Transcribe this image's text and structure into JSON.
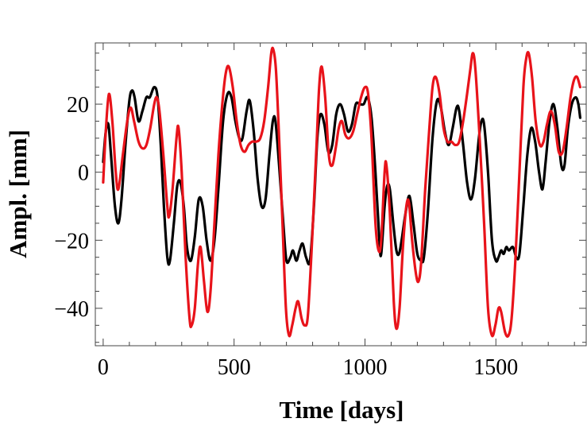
{
  "chart_data": {
    "type": "line",
    "title": "",
    "xlabel": "Time [days]",
    "ylabel": "Ampl. [mm]",
    "xlim": [
      -30,
      1845
    ],
    "ylim": [
      -51,
      38
    ],
    "x_ticks": [
      0,
      500,
      1000,
      1500
    ],
    "x_tick_labels": [
      "0",
      "500",
      "1000",
      "1500"
    ],
    "y_ticks": [
      20,
      0,
      -20,
      -40
    ],
    "y_tick_labels": [
      "20",
      "0",
      "−20",
      "−40"
    ],
    "grid": false,
    "series": [
      {
        "name": "black",
        "color": "#000000",
        "points": [
          [
            0,
            3
          ],
          [
            10,
            12
          ],
          [
            20,
            14
          ],
          [
            30,
            5
          ],
          [
            45,
            -10
          ],
          [
            58,
            -15
          ],
          [
            70,
            -8
          ],
          [
            85,
            8
          ],
          [
            100,
            21
          ],
          [
            110,
            24
          ],
          [
            120,
            22
          ],
          [
            135,
            15
          ],
          [
            150,
            18
          ],
          [
            165,
            22
          ],
          [
            178,
            22
          ],
          [
            195,
            25
          ],
          [
            208,
            22
          ],
          [
            220,
            8
          ],
          [
            232,
            -10
          ],
          [
            245,
            -25
          ],
          [
            255,
            -26
          ],
          [
            270,
            -15
          ],
          [
            283,
            -4
          ],
          [
            295,
            -3
          ],
          [
            308,
            -10
          ],
          [
            320,
            -22
          ],
          [
            335,
            -26
          ],
          [
            350,
            -19
          ],
          [
            365,
            -8
          ],
          [
            380,
            -10
          ],
          [
            395,
            -20
          ],
          [
            410,
            -26
          ],
          [
            425,
            -20
          ],
          [
            440,
            -5
          ],
          [
            458,
            15
          ],
          [
            475,
            23
          ],
          [
            490,
            22
          ],
          [
            505,
            15
          ],
          [
            520,
            10
          ],
          [
            532,
            10
          ],
          [
            548,
            18
          ],
          [
            560,
            21
          ],
          [
            575,
            12
          ],
          [
            590,
            -2
          ],
          [
            605,
            -10
          ],
          [
            620,
            -8
          ],
          [
            635,
            5
          ],
          [
            648,
            15
          ],
          [
            658,
            15
          ],
          [
            672,
            2
          ],
          [
            688,
            -15
          ],
          [
            700,
            -26
          ],
          [
            715,
            -25
          ],
          [
            725,
            -23
          ],
          [
            738,
            -26
          ],
          [
            750,
            -23
          ],
          [
            762,
            -21
          ],
          [
            775,
            -25
          ],
          [
            790,
            -26
          ],
          [
            805,
            -10
          ],
          [
            818,
            10
          ],
          [
            830,
            17
          ],
          [
            845,
            14
          ],
          [
            860,
            6
          ],
          [
            875,
            8
          ],
          [
            890,
            17
          ],
          [
            905,
            20
          ],
          [
            920,
            17
          ],
          [
            935,
            12
          ],
          [
            950,
            14
          ],
          [
            965,
            20
          ],
          [
            980,
            20
          ],
          [
            995,
            20
          ],
          [
            1010,
            22
          ],
          [
            1025,
            16
          ],
          [
            1040,
            0
          ],
          [
            1055,
            -20
          ],
          [
            1062,
            -24
          ],
          [
            1075,
            -10
          ],
          [
            1085,
            -4
          ],
          [
            1095,
            -5
          ],
          [
            1108,
            -15
          ],
          [
            1120,
            -23
          ],
          [
            1130,
            -24
          ],
          [
            1140,
            -20
          ],
          [
            1155,
            -12
          ],
          [
            1170,
            -7
          ],
          [
            1185,
            -15
          ],
          [
            1200,
            -24
          ],
          [
            1215,
            -26
          ],
          [
            1225,
            -25
          ],
          [
            1240,
            -12
          ],
          [
            1258,
            10
          ],
          [
            1275,
            21
          ],
          [
            1290,
            19
          ],
          [
            1305,
            12
          ],
          [
            1320,
            8
          ],
          [
            1335,
            13
          ],
          [
            1350,
            19
          ],
          [
            1360,
            18
          ],
          [
            1375,
            8
          ],
          [
            1390,
            -3
          ],
          [
            1405,
            -8
          ],
          [
            1420,
            -2
          ],
          [
            1435,
            10
          ],
          [
            1445,
            15
          ],
          [
            1455,
            14
          ],
          [
            1470,
            0
          ],
          [
            1485,
            -20
          ],
          [
            1500,
            -26
          ],
          [
            1510,
            -25
          ],
          [
            1520,
            -23
          ],
          [
            1530,
            -24
          ],
          [
            1540,
            -22
          ],
          [
            1550,
            -23
          ],
          [
            1565,
            -22
          ],
          [
            1578,
            -25
          ],
          [
            1590,
            -24
          ],
          [
            1605,
            -10
          ],
          [
            1620,
            5
          ],
          [
            1635,
            13
          ],
          [
            1650,
            9
          ],
          [
            1665,
            0
          ],
          [
            1678,
            -5
          ],
          [
            1690,
            3
          ],
          [
            1705,
            15
          ],
          [
            1720,
            20
          ],
          [
            1735,
            13
          ],
          [
            1750,
            2
          ],
          [
            1762,
            2
          ],
          [
            1775,
            13
          ],
          [
            1790,
            20
          ],
          [
            1805,
            22
          ],
          [
            1815,
            20
          ],
          [
            1822,
            16
          ]
        ]
      },
      {
        "name": "red",
        "color": "#e8131a",
        "points": [
          [
            0,
            -3
          ],
          [
            10,
            12
          ],
          [
            22,
            23
          ],
          [
            35,
            15
          ],
          [
            48,
            0
          ],
          [
            58,
            -5
          ],
          [
            75,
            5
          ],
          [
            92,
            15
          ],
          [
            105,
            19
          ],
          [
            118,
            15
          ],
          [
            135,
            9
          ],
          [
            150,
            7
          ],
          [
            165,
            8
          ],
          [
            180,
            13
          ],
          [
            195,
            20
          ],
          [
            205,
            22
          ],
          [
            215,
            18
          ],
          [
            230,
            5
          ],
          [
            245,
            -10
          ],
          [
            252,
            -13
          ],
          [
            265,
            -5
          ],
          [
            280,
            10
          ],
          [
            288,
            13
          ],
          [
            300,
            0
          ],
          [
            315,
            -25
          ],
          [
            330,
            -43
          ],
          [
            338,
            -45
          ],
          [
            350,
            -40
          ],
          [
            362,
            -27
          ],
          [
            372,
            -22
          ],
          [
            385,
            -32
          ],
          [
            398,
            -41
          ],
          [
            410,
            -35
          ],
          [
            425,
            -15
          ],
          [
            440,
            5
          ],
          [
            455,
            20
          ],
          [
            468,
            29
          ],
          [
            480,
            31
          ],
          [
            495,
            25
          ],
          [
            510,
            15
          ],
          [
            525,
            8
          ],
          [
            540,
            6
          ],
          [
            555,
            8
          ],
          [
            570,
            9
          ],
          [
            585,
            9
          ],
          [
            600,
            10
          ],
          [
            615,
            15
          ],
          [
            630,
            25
          ],
          [
            642,
            35
          ],
          [
            650,
            36
          ],
          [
            660,
            30
          ],
          [
            672,
            10
          ],
          [
            685,
            -15
          ],
          [
            698,
            -40
          ],
          [
            710,
            -48
          ],
          [
            722,
            -45
          ],
          [
            735,
            -40
          ],
          [
            745,
            -38
          ],
          [
            758,
            -43
          ],
          [
            770,
            -45
          ],
          [
            782,
            -42
          ],
          [
            798,
            -20
          ],
          [
            815,
            8
          ],
          [
            825,
            25
          ],
          [
            835,
            31
          ],
          [
            848,
            22
          ],
          [
            862,
            5
          ],
          [
            875,
            2
          ],
          [
            888,
            7
          ],
          [
            900,
            13
          ],
          [
            912,
            15
          ],
          [
            925,
            11
          ],
          [
            940,
            10
          ],
          [
            955,
            12
          ],
          [
            970,
            17
          ],
          [
            985,
            22
          ],
          [
            1000,
            25
          ],
          [
            1012,
            23
          ],
          [
            1025,
            10
          ],
          [
            1040,
            -15
          ],
          [
            1052,
            -23
          ],
          [
            1062,
            -20
          ],
          [
            1075,
            0
          ],
          [
            1082,
            2
          ],
          [
            1095,
            -12
          ],
          [
            1110,
            -38
          ],
          [
            1120,
            -46
          ],
          [
            1132,
            -40
          ],
          [
            1145,
            -22
          ],
          [
            1158,
            -10
          ],
          [
            1168,
            -9
          ],
          [
            1180,
            -20
          ],
          [
            1195,
            -30
          ],
          [
            1205,
            -32
          ],
          [
            1215,
            -26
          ],
          [
            1230,
            -5
          ],
          [
            1245,
            12
          ],
          [
            1258,
            25
          ],
          [
            1270,
            28
          ],
          [
            1285,
            23
          ],
          [
            1300,
            13
          ],
          [
            1315,
            9
          ],
          [
            1330,
            9
          ],
          [
            1345,
            8
          ],
          [
            1360,
            9
          ],
          [
            1375,
            15
          ],
          [
            1390,
            23
          ],
          [
            1402,
            30
          ],
          [
            1412,
            35
          ],
          [
            1422,
            30
          ],
          [
            1438,
            10
          ],
          [
            1455,
            -15
          ],
          [
            1470,
            -40
          ],
          [
            1485,
            -48
          ],
          [
            1498,
            -45
          ],
          [
            1510,
            -40
          ],
          [
            1520,
            -41
          ],
          [
            1535,
            -47
          ],
          [
            1548,
            -48
          ],
          [
            1560,
            -43
          ],
          [
            1575,
            -25
          ],
          [
            1590,
            0
          ],
          [
            1605,
            25
          ],
          [
            1615,
            33
          ],
          [
            1625,
            35
          ],
          [
            1638,
            28
          ],
          [
            1652,
            15
          ],
          [
            1668,
            8
          ],
          [
            1682,
            9
          ],
          [
            1695,
            14
          ],
          [
            1710,
            18
          ],
          [
            1725,
            14
          ],
          [
            1740,
            6
          ],
          [
            1755,
            6
          ],
          [
            1770,
            13
          ],
          [
            1785,
            22
          ],
          [
            1798,
            27
          ],
          [
            1810,
            28
          ],
          [
            1822,
            25
          ]
        ]
      }
    ]
  }
}
